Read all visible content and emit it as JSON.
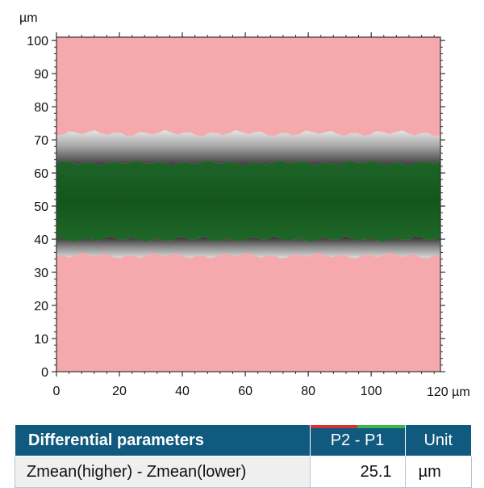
{
  "chart_data": {
    "type": "heatmap",
    "y_unit": "µm",
    "x_unit": "120 µm",
    "x_ticks": [
      "0",
      "20",
      "40",
      "60",
      "80",
      "100"
    ],
    "y_ticks": [
      "0",
      "10",
      "20",
      "30",
      "40",
      "50",
      "60",
      "70",
      "80",
      "90",
      "100"
    ],
    "xlim": [
      0,
      122
    ],
    "ylim": [
      0,
      101
    ],
    "regions": [
      {
        "name": "higher",
        "color": "#f5a9ad",
        "y_range": [
          0,
          35
        ]
      },
      {
        "name": "transition",
        "color": "#b0b0b0",
        "y_range": [
          35,
          40
        ]
      },
      {
        "name": "lower",
        "color": "#1a5e22",
        "y_range": [
          40,
          63
        ]
      },
      {
        "name": "transition",
        "color": "#b0b0b0",
        "y_range": [
          63,
          72
        ]
      },
      {
        "name": "higher",
        "color": "#f5a9ad",
        "y_range": [
          72,
          101
        ]
      }
    ]
  },
  "table": {
    "header": "Differential parameters",
    "col": "P2 - P1",
    "unit_header": "Unit",
    "row": {
      "name": "Zmean(higher) - Zmean(lower)",
      "value": "25.1",
      "unit": "µm"
    },
    "colors": {
      "header_bg": "#0f5a7e",
      "p1_marker": "#d93030",
      "p2_marker": "#39b54a"
    }
  }
}
